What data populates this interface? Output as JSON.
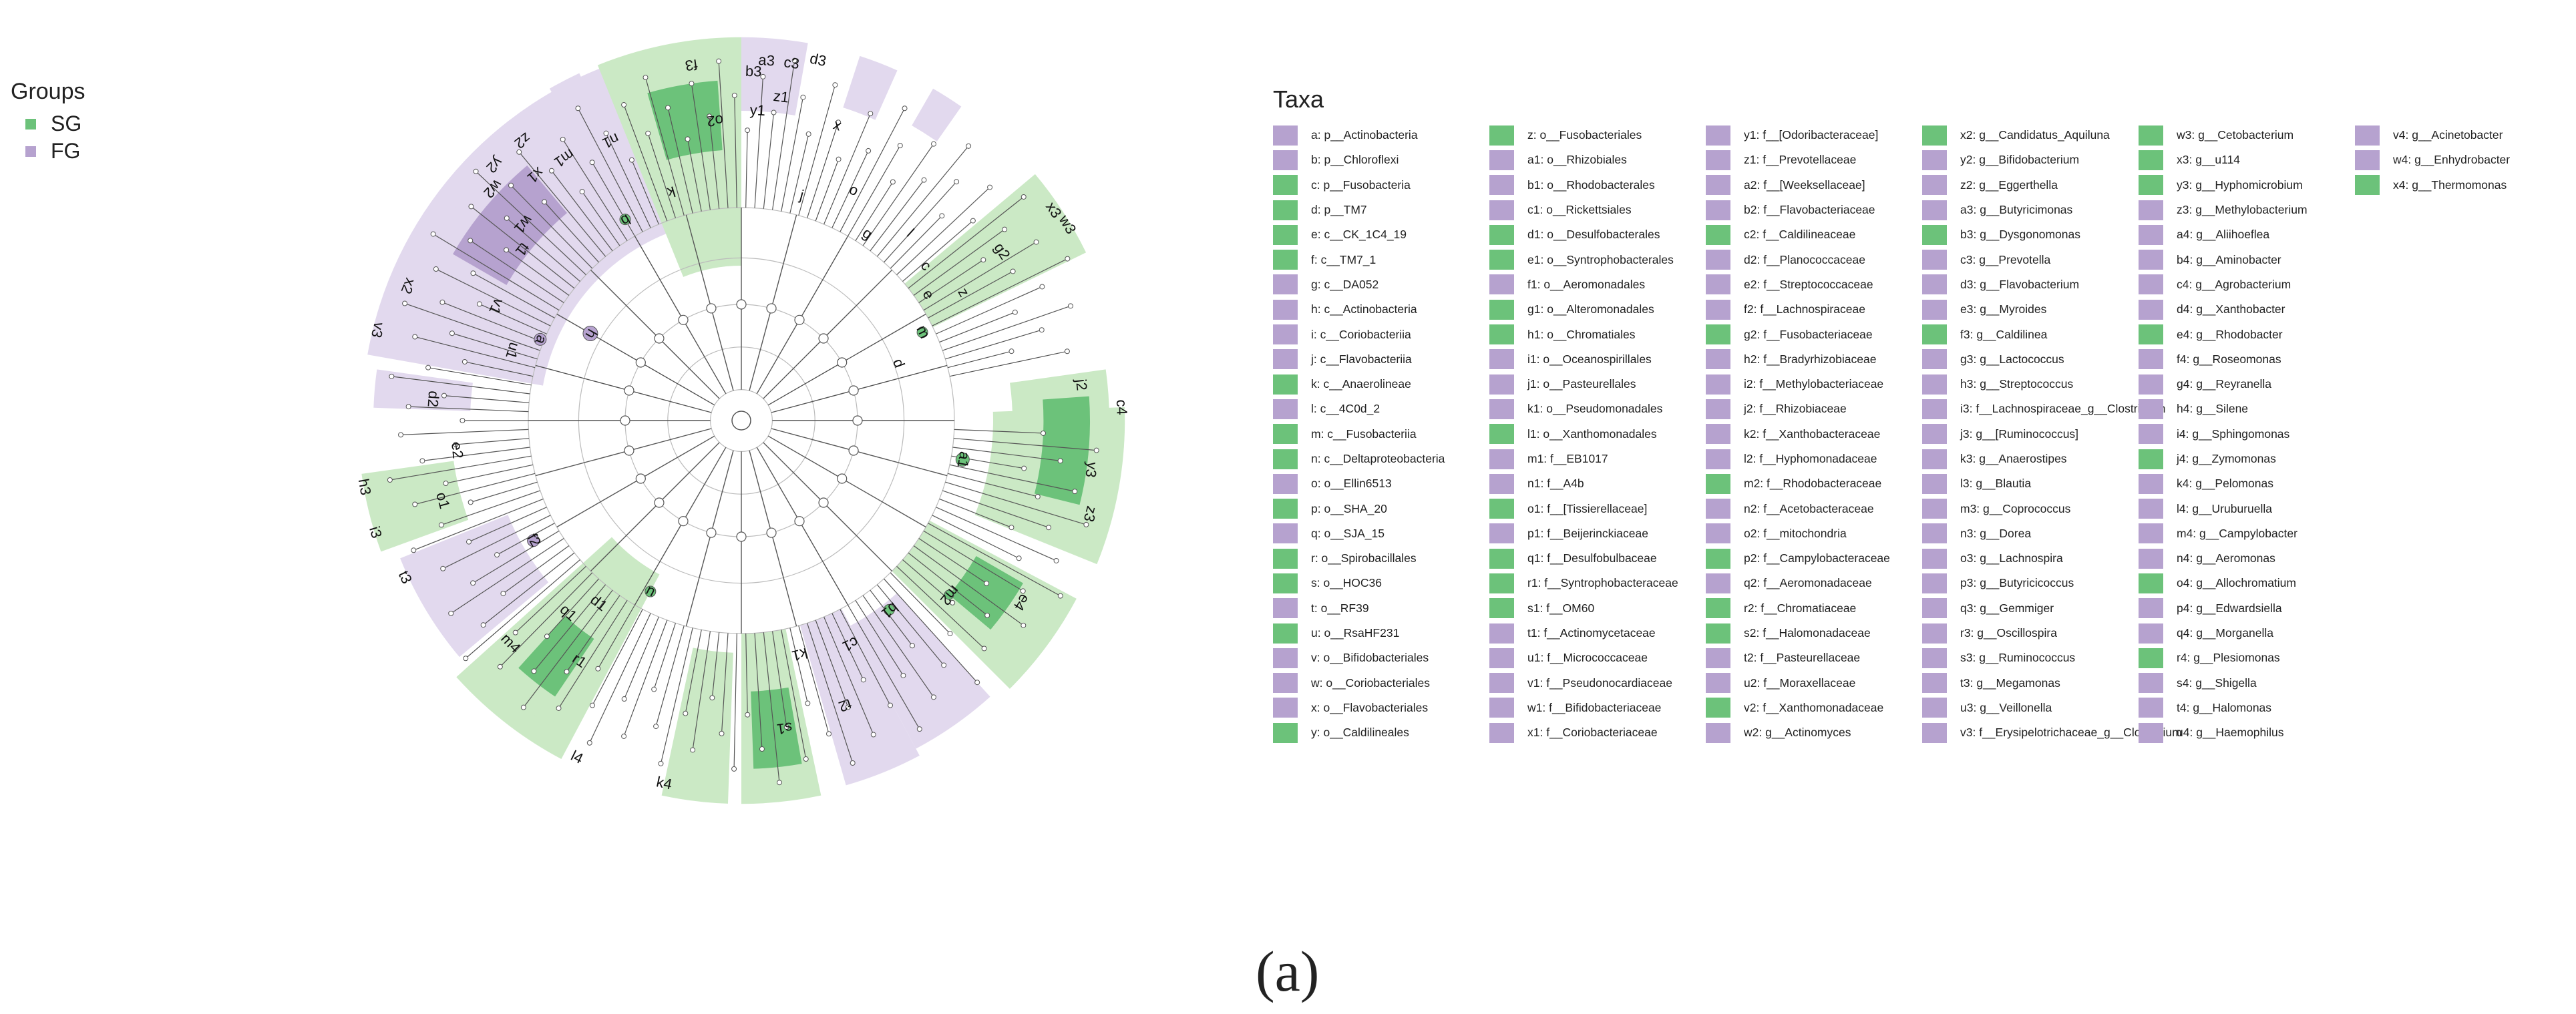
{
  "colors": {
    "SG": "#6cc27a",
    "FG": "#b6a2cf",
    "SG_light": "#cbe9c5",
    "FG_light": "#e2d9ee",
    "line": "#555555"
  },
  "groups_legend": {
    "title": "Groups",
    "items": [
      {
        "label": "SG",
        "group": "SG"
      },
      {
        "label": "FG",
        "group": "FG"
      }
    ]
  },
  "taxa_legend": {
    "title": "Taxa",
    "columns": [
      [
        {
          "g": "FG",
          "t": "a: p__Actinobacteria"
        },
        {
          "g": "FG",
          "t": "b: p__Chloroflexi"
        },
        {
          "g": "SG",
          "t": "c: p__Fusobacteria"
        },
        {
          "g": "SG",
          "t": "d: p__TM7"
        },
        {
          "g": "SG",
          "t": "e: c__CK_1C4_19"
        },
        {
          "g": "SG",
          "t": "f: c__TM7_1"
        },
        {
          "g": "FG",
          "t": "g: c__DA052"
        },
        {
          "g": "FG",
          "t": "h: c__Actinobacteria"
        },
        {
          "g": "FG",
          "t": "i: c__Coriobacteriia"
        },
        {
          "g": "FG",
          "t": "j: c__Flavobacteriia"
        },
        {
          "g": "SG",
          "t": "k: c__Anaerolineae"
        },
        {
          "g": "FG",
          "t": "l: c__4C0d_2"
        },
        {
          "g": "SG",
          "t": "m: c__Fusobacteriia"
        },
        {
          "g": "SG",
          "t": "n: c__Deltaproteobacteria"
        },
        {
          "g": "FG",
          "t": "o: o__Ellin6513"
        },
        {
          "g": "SG",
          "t": "p: o__SHA_20"
        },
        {
          "g": "FG",
          "t": "q: o__SJA_15"
        },
        {
          "g": "SG",
          "t": "r: o__Spirobacillales"
        },
        {
          "g": "SG",
          "t": "s: o__HOC36"
        },
        {
          "g": "FG",
          "t": "t: o__RF39"
        },
        {
          "g": "SG",
          "t": "u: o__RsaHF231"
        },
        {
          "g": "FG",
          "t": "v: o__Bifidobacteriales"
        },
        {
          "g": "FG",
          "t": "w: o__Coriobacteriales"
        },
        {
          "g": "FG",
          "t": "x: o__Flavobacteriales"
        },
        {
          "g": "SG",
          "t": "y: o__Caldilineales"
        }
      ],
      [
        {
          "g": "SG",
          "t": "z: o__Fusobacteriales"
        },
        {
          "g": "FG",
          "t": "a1: o__Rhizobiales"
        },
        {
          "g": "FG",
          "t": "b1: o__Rhodobacterales"
        },
        {
          "g": "FG",
          "t": "c1: o__Rickettsiales"
        },
        {
          "g": "SG",
          "t": "d1: o__Desulfobacterales"
        },
        {
          "g": "SG",
          "t": "e1: o__Syntrophobacterales"
        },
        {
          "g": "FG",
          "t": "f1: o__Aeromonadales"
        },
        {
          "g": "SG",
          "t": "g1: o__Alteromonadales"
        },
        {
          "g": "SG",
          "t": "h1: o__Chromatiales"
        },
        {
          "g": "FG",
          "t": "i1: o__Oceanospirillales"
        },
        {
          "g": "FG",
          "t": "j1: o__Pasteurellales"
        },
        {
          "g": "FG",
          "t": "k1: o__Pseudomonadales"
        },
        {
          "g": "SG",
          "t": "l1: o__Xanthomonadales"
        },
        {
          "g": "FG",
          "t": "m1: f__EB1017"
        },
        {
          "g": "FG",
          "t": "n1: f__A4b"
        },
        {
          "g": "SG",
          "t": "o1: f__[Tissierellaceae]"
        },
        {
          "g": "FG",
          "t": "p1: f__Beijerinckiaceae"
        },
        {
          "g": "SG",
          "t": "q1: f__Desulfobulbaceae"
        },
        {
          "g": "SG",
          "t": "r1: f__Syntrophobacteraceae"
        },
        {
          "g": "SG",
          "t": "s1: f__OM60"
        },
        {
          "g": "FG",
          "t": "t1: f__Actinomycetaceae"
        },
        {
          "g": "FG",
          "t": "u1: f__Micrococcaceae"
        },
        {
          "g": "FG",
          "t": "v1: f__Pseudonocardiaceae"
        },
        {
          "g": "FG",
          "t": "w1: f__Bifidobacteriaceae"
        },
        {
          "g": "FG",
          "t": "x1: f__Coriobacteriaceae"
        }
      ],
      [
        {
          "g": "FG",
          "t": "y1: f__[Odoribacteraceae]"
        },
        {
          "g": "FG",
          "t": "z1: f__Prevotellaceae"
        },
        {
          "g": "FG",
          "t": "a2: f__[Weeksellaceae]"
        },
        {
          "g": "FG",
          "t": "b2: f__Flavobacteriaceae"
        },
        {
          "g": "SG",
          "t": "c2: f__Caldilineaceae"
        },
        {
          "g": "FG",
          "t": "d2: f__Planococcaceae"
        },
        {
          "g": "FG",
          "t": "e2: f__Streptococcaceae"
        },
        {
          "g": "FG",
          "t": "f2: f__Lachnospiraceae"
        },
        {
          "g": "SG",
          "t": "g2: f__Fusobacteriaceae"
        },
        {
          "g": "FG",
          "t": "h2: f__Bradyrhizobiaceae"
        },
        {
          "g": "FG",
          "t": "i2: f__Methylobacteriaceae"
        },
        {
          "g": "FG",
          "t": "j2: f__Rhizobiaceae"
        },
        {
          "g": "FG",
          "t": "k2: f__Xanthobacteraceae"
        },
        {
          "g": "FG",
          "t": "l2: f__Hyphomonadaceae"
        },
        {
          "g": "SG",
          "t": "m2: f__Rhodobacteraceae"
        },
        {
          "g": "FG",
          "t": "n2: f__Acetobacteraceae"
        },
        {
          "g": "FG",
          "t": "o2: f__mitochondria"
        },
        {
          "g": "SG",
          "t": "p2: f__Campylobacteraceae"
        },
        {
          "g": "FG",
          "t": "q2: f__Aeromonadaceae"
        },
        {
          "g": "SG",
          "t": "r2: f__Chromatiaceae"
        },
        {
          "g": "SG",
          "t": "s2: f__Halomonadaceae"
        },
        {
          "g": "FG",
          "t": "t2: f__Pasteurellaceae"
        },
        {
          "g": "FG",
          "t": "u2: f__Moraxellaceae"
        },
        {
          "g": "SG",
          "t": "v2: f__Xanthomonadaceae"
        },
        {
          "g": "FG",
          "t": "w2: g__Actinomyces"
        }
      ],
      [
        {
          "g": "SG",
          "t": "x2: g__Candidatus_Aquiluna"
        },
        {
          "g": "FG",
          "t": "y2: g__Bifidobacterium"
        },
        {
          "g": "FG",
          "t": "z2: g__Eggerthella"
        },
        {
          "g": "FG",
          "t": "a3: g__Butyricimonas"
        },
        {
          "g": "SG",
          "t": "b3: g__Dysgonomonas"
        },
        {
          "g": "FG",
          "t": "c3: g__Prevotella"
        },
        {
          "g": "FG",
          "t": "d3: g__Flavobacterium"
        },
        {
          "g": "FG",
          "t": "e3: g__Myroides"
        },
        {
          "g": "SG",
          "t": "f3: g__Caldilinea"
        },
        {
          "g": "FG",
          "t": "g3: g__Lactococcus"
        },
        {
          "g": "FG",
          "t": "h3: g__Streptococcus"
        },
        {
          "g": "FG",
          "t": "i3: f__Lachnospiraceae_g__Clostridium"
        },
        {
          "g": "FG",
          "t": "j3: g__[Ruminococcus]"
        },
        {
          "g": "FG",
          "t": "k3: g__Anaerostipes"
        },
        {
          "g": "FG",
          "t": "l3: g__Blautia"
        },
        {
          "g": "FG",
          "t": "m3: g__Coprococcus"
        },
        {
          "g": "FG",
          "t": "n3: g__Dorea"
        },
        {
          "g": "FG",
          "t": "o3: g__Lachnospira"
        },
        {
          "g": "FG",
          "t": "p3: g__Butyricicoccus"
        },
        {
          "g": "FG",
          "t": "q3: g__Gemmiger"
        },
        {
          "g": "FG",
          "t": "r3: g__Oscillospira"
        },
        {
          "g": "FG",
          "t": "s3: g__Ruminococcus"
        },
        {
          "g": "FG",
          "t": "t3: g__Megamonas"
        },
        {
          "g": "FG",
          "t": "u3: g__Veillonella"
        },
        {
          "g": "FG",
          "t": "v3: f__Erysipelotrichaceae_g__Clostridium"
        }
      ],
      [
        {
          "g": "SG",
          "t": "w3: g__Cetobacterium"
        },
        {
          "g": "SG",
          "t": "x3: g__u114"
        },
        {
          "g": "SG",
          "t": "y3: g__Hyphomicrobium"
        },
        {
          "g": "FG",
          "t": "z3: g__Methylobacterium"
        },
        {
          "g": "FG",
          "t": "a4: g__Aliihoeflea"
        },
        {
          "g": "FG",
          "t": "b4: g__Aminobacter"
        },
        {
          "g": "FG",
          "t": "c4: g__Agrobacterium"
        },
        {
          "g": "FG",
          "t": "d4: g__Xanthobacter"
        },
        {
          "g": "SG",
          "t": "e4: g__Rhodobacter"
        },
        {
          "g": "FG",
          "t": "f4: g__Roseomonas"
        },
        {
          "g": "FG",
          "t": "g4: g__Reyranella"
        },
        {
          "g": "FG",
          "t": "h4: g__Silene"
        },
        {
          "g": "FG",
          "t": "i4: g__Sphingomonas"
        },
        {
          "g": "SG",
          "t": "j4: g__Zymomonas"
        },
        {
          "g": "FG",
          "t": "k4: g__Pelomonas"
        },
        {
          "g": "FG",
          "t": "l4: g__Uruburuella"
        },
        {
          "g": "FG",
          "t": "m4: g__Campylobacter"
        },
        {
          "g": "FG",
          "t": "n4: g__Aeromonas"
        },
        {
          "g": "SG",
          "t": "o4: g__Allochromatium"
        },
        {
          "g": "FG",
          "t": "p4: g__Edwardsiella"
        },
        {
          "g": "FG",
          "t": "q4: g__Morganella"
        },
        {
          "g": "SG",
          "t": "r4: g__Plesiomonas"
        },
        {
          "g": "FG",
          "t": "s4: g__Shigella"
        },
        {
          "g": "FG",
          "t": "t4: g__Halomonas"
        },
        {
          "g": "FG",
          "t": "u4: g__Haemophilus"
        }
      ],
      [
        {
          "g": "FG",
          "t": "v4: g__Acinetobacter"
        },
        {
          "g": "FG",
          "t": "w4: g__Enhydrobacter"
        },
        {
          "g": "SG",
          "t": "x4: g__Thermomonas"
        }
      ]
    ]
  },
  "cladogram_labels": [
    {
      "t": "a",
      "a": -158,
      "r": 0.56
    },
    {
      "t": "b",
      "a": -120,
      "r": 0.6
    },
    {
      "t": "f3",
      "a": -98,
      "r": 0.93
    },
    {
      "t": "o2",
      "a": -95,
      "r": 0.78
    },
    {
      "t": "n1",
      "a": -115,
      "r": 0.8
    },
    {
      "t": "m1",
      "a": -124,
      "r": 0.82
    },
    {
      "t": "z2",
      "a": -128,
      "r": 0.92
    },
    {
      "t": "y2",
      "a": -134,
      "r": 0.92
    },
    {
      "t": "x1",
      "a": -130,
      "r": 0.83
    },
    {
      "t": "w2",
      "a": -137,
      "r": 0.88
    },
    {
      "t": "w1",
      "a": -138,
      "r": 0.76
    },
    {
      "t": "t1",
      "a": -142,
      "r": 0.72
    },
    {
      "t": "x2",
      "a": -158,
      "r": 0.93
    },
    {
      "t": "v1",
      "a": -155,
      "r": 0.7
    },
    {
      "t": "u1",
      "a": -163,
      "r": 0.62
    },
    {
      "t": "v3",
      "a": -166,
      "r": 0.97
    },
    {
      "t": "h",
      "a": -150,
      "r": 0.45
    },
    {
      "t": "d2",
      "a": -176,
      "r": 0.8
    },
    {
      "t": "e2",
      "a": 174,
      "r": 0.74
    },
    {
      "t": "o1",
      "a": 165,
      "r": 0.8
    },
    {
      "t": "i3",
      "a": 163,
      "r": 0.99
    },
    {
      "t": "h3",
      "a": 170,
      "r": 0.99
    },
    {
      "t": "t3",
      "a": 155,
      "r": 0.96
    },
    {
      "t": "f2",
      "a": 150,
      "r": 0.62
    },
    {
      "t": "m4",
      "a": 136,
      "r": 0.83
    },
    {
      "t": "q1",
      "a": 132,
      "r": 0.67
    },
    {
      "t": "d1",
      "a": 128,
      "r": 0.6
    },
    {
      "t": "r1",
      "a": 124,
      "r": 0.75
    },
    {
      "t": "n",
      "a": 118,
      "r": 0.5
    },
    {
      "t": "l4",
      "a": 116,
      "r": 0.97
    },
    {
      "t": "k4",
      "a": 102,
      "r": 0.96
    },
    {
      "t": "s1",
      "a": 82,
      "r": 0.8
    },
    {
      "t": "k1",
      "a": 76,
      "r": 0.62
    },
    {
      "t": "t2",
      "a": 70,
      "r": 0.78
    },
    {
      "t": "c1",
      "a": 64,
      "r": 0.64
    },
    {
      "t": "b1",
      "a": 52,
      "r": 0.62
    },
    {
      "t": "m2",
      "a": 40,
      "r": 0.7
    },
    {
      "t": "e4",
      "a": 33,
      "r": 0.86
    },
    {
      "t": "a1",
      "a": 10,
      "r": 0.58
    },
    {
      "t": "j2",
      "a": -6,
      "r": 0.88
    },
    {
      "t": "c4",
      "a": -2,
      "r": 0.98
    },
    {
      "t": "y3",
      "a": 8,
      "r": 0.91
    },
    {
      "t": "z3",
      "a": 15,
      "r": 0.93
    },
    {
      "t": "w3",
      "a": -31,
      "r": 0.98
    },
    {
      "t": "x3",
      "a": -34,
      "r": 0.97
    },
    {
      "t": "g2",
      "a": -33,
      "r": 0.8
    },
    {
      "t": "m",
      "a": -26,
      "r": 0.52
    },
    {
      "t": "d",
      "a": -20,
      "r": 0.43
    },
    {
      "t": "a3",
      "a": -86,
      "r": 0.93
    },
    {
      "t": "c3",
      "a": -82,
      "r": 0.93
    },
    {
      "t": "d3",
      "a": -78,
      "r": 0.95
    },
    {
      "t": "b3",
      "a": -88,
      "r": 0.9
    },
    {
      "t": "y1",
      "a": -87,
      "r": 0.8
    },
    {
      "t": "z1",
      "a": -83,
      "r": 0.84
    },
    {
      "t": "x",
      "a": -72,
      "r": 0.8
    },
    {
      "t": "j",
      "a": -75,
      "r": 0.6
    },
    {
      "t": "o",
      "a": -64,
      "r": 0.66
    },
    {
      "t": "g",
      "a": -56,
      "r": 0.58
    },
    {
      "t": "k",
      "a": -107,
      "r": 0.62
    },
    {
      "t": "l",
      "a": -48,
      "r": 0.65
    },
    {
      "t": "e",
      "a": -34,
      "r": 0.58
    },
    {
      "t": "z",
      "a": -30,
      "r": 0.66
    },
    {
      "t": "c",
      "a": -40,
      "r": 0.62
    }
  ],
  "caption": "(a)"
}
